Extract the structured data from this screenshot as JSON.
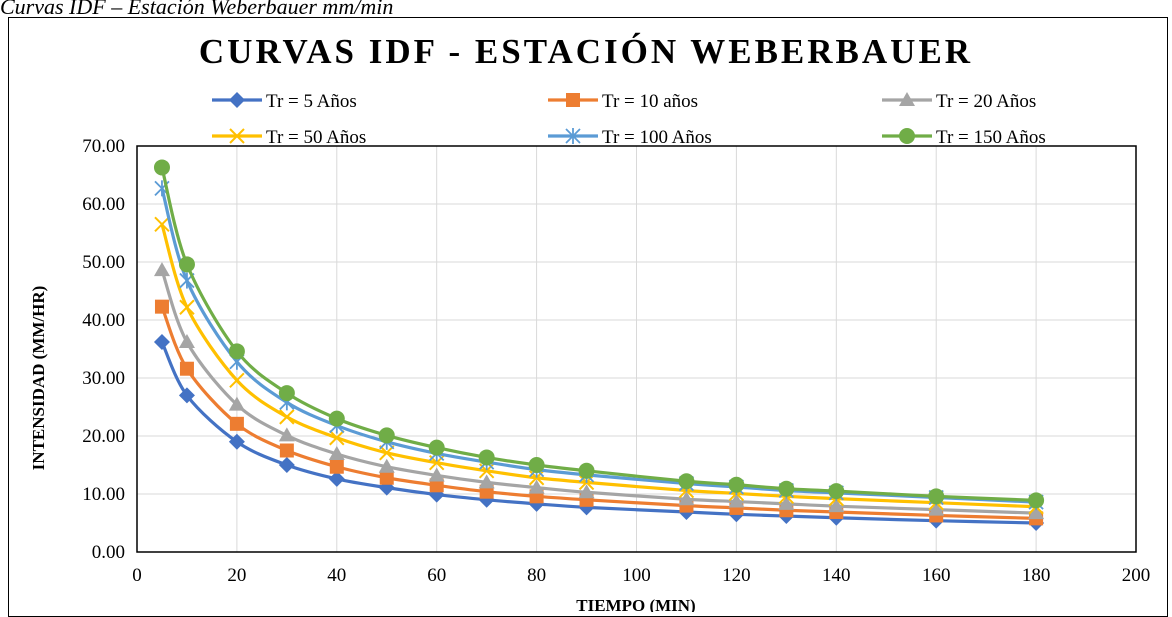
{
  "caption": "Curvas IDF – Estación Weberbauer mm/min",
  "colors": {
    "Tr = 5 Años": "#4472C4",
    "Tr = 10 años": "#ED7D31",
    "Tr = 20 Años": "#A5A5A5",
    "Tr = 50 Años": "#FFC000",
    "Tr = 100 Años": "#5B9BD5",
    "Tr = 150 Años": "#70AD47"
  },
  "chart_data": {
    "type": "line",
    "title": "CURVAS IDF - ESTACIÓN WEBERBAUER",
    "xlabel": "TIEMPO (MIN)",
    "ylabel": "INTENSIDAD (MM/HR)",
    "xlim": [
      0,
      200
    ],
    "ylim": [
      0,
      70
    ],
    "x_ticks": [
      "0",
      "20",
      "40",
      "60",
      "80",
      "100",
      "120",
      "140",
      "160",
      "180",
      "200"
    ],
    "y_ticks": [
      "0.00",
      "10.00",
      "20.00",
      "30.00",
      "40.00",
      "50.00",
      "60.00",
      "70.00"
    ],
    "grid": true,
    "legend_position": "top",
    "x": [
      5,
      10,
      20,
      30,
      40,
      50,
      60,
      70,
      80,
      90,
      110,
      120,
      130,
      140,
      160,
      180
    ],
    "series": [
      {
        "name": "Tr = 5 Años",
        "marker": "diamond",
        "values": [
          36.2,
          27.0,
          19.0,
          15.0,
          12.6,
          11.1,
          9.9,
          9.0,
          8.3,
          7.7,
          6.9,
          6.5,
          6.2,
          5.9,
          5.4,
          5.0
        ]
      },
      {
        "name": "Tr = 10 años",
        "marker": "square",
        "values": [
          42.3,
          31.6,
          22.1,
          17.5,
          14.7,
          12.8,
          11.5,
          10.4,
          9.6,
          9.0,
          8.0,
          7.6,
          7.2,
          6.9,
          6.3,
          5.8
        ]
      },
      {
        "name": "Tr = 20 Años",
        "marker": "triangle",
        "values": [
          48.6,
          36.2,
          25.4,
          20.1,
          16.9,
          14.7,
          13.2,
          12.0,
          11.1,
          10.3,
          9.1,
          8.7,
          8.3,
          7.9,
          7.3,
          6.7
        ]
      },
      {
        "name": "Tr = 50 Años",
        "marker": "x",
        "values": [
          56.5,
          42.2,
          29.6,
          23.3,
          19.7,
          17.1,
          15.4,
          14.0,
          12.8,
          12.0,
          10.6,
          10.1,
          9.6,
          9.2,
          8.5,
          7.8
        ]
      },
      {
        "name": "Tr = 100 Años",
        "marker": "star",
        "values": [
          62.7,
          46.8,
          32.8,
          25.8,
          21.8,
          19.0,
          17.0,
          15.5,
          14.2,
          13.3,
          11.8,
          11.2,
          10.6,
          10.2,
          9.4,
          8.6
        ]
      },
      {
        "name": "Tr = 150 Años",
        "marker": "circle",
        "values": [
          66.3,
          49.6,
          34.6,
          27.4,
          23.0,
          20.1,
          18.0,
          16.3,
          15.0,
          14.0,
          12.2,
          11.6,
          10.9,
          10.5,
          9.6,
          8.9
        ]
      }
    ]
  }
}
